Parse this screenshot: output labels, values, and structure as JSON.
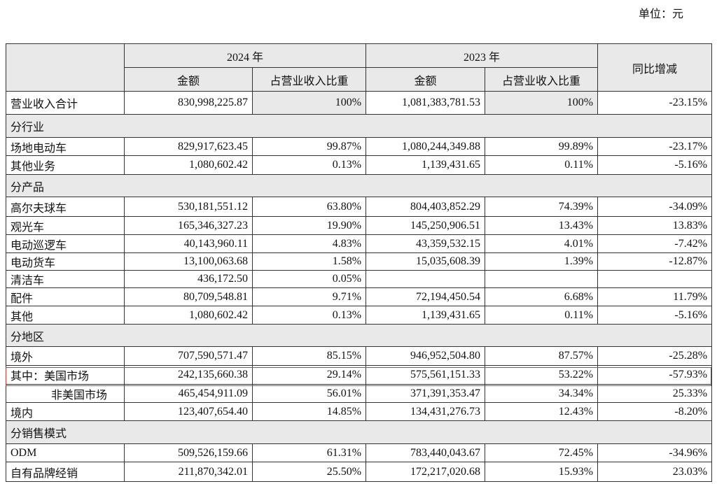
{
  "unit": "单位：元",
  "header": {
    "label_col": "",
    "year_2024": "2024 年",
    "year_2023": "2023 年",
    "yoy": "同比增减",
    "amount": "金额",
    "share": "占营业收入比重"
  },
  "rows": [
    {
      "label": "营业收入合计",
      "cells": [
        "830,998,225.87",
        "100%",
        "1,081,383,781.53",
        "100%",
        "-23.15%"
      ]
    },
    {
      "section": "分行业"
    },
    {
      "label": "场地电动车",
      "cells": [
        "829,917,623.45",
        "99.87%",
        "1,080,244,349.88",
        "99.89%",
        "-23.17%"
      ]
    },
    {
      "label": "其他业务",
      "cells": [
        "1,080,602.42",
        "0.13%",
        "1,139,431.65",
        "0.11%",
        "-5.16%"
      ]
    },
    {
      "section": "分产品"
    },
    {
      "label": "高尔夫球车",
      "cells": [
        "530,181,551.12",
        "63.80%",
        "804,403,852.29",
        "74.39%",
        "-34.09%"
      ]
    },
    {
      "label": "观光车",
      "cells": [
        "165,346,327.23",
        "19.90%",
        "145,250,906.51",
        "13.43%",
        "13.83%"
      ]
    },
    {
      "label": "电动巡逻车",
      "cells": [
        "40,143,960.11",
        "4.83%",
        "43,359,532.15",
        "4.01%",
        "-7.42%"
      ]
    },
    {
      "label": "电动货车",
      "cells": [
        "13,100,063.68",
        "1.58%",
        "15,035,608.39",
        "1.39%",
        "-12.87%"
      ]
    },
    {
      "label": "清洁车",
      "cells": [
        "436,172.50",
        "0.05%"
      ]
    },
    {
      "label": "配件",
      "cells": [
        "80,709,548.81",
        "9.71%",
        "72,194,450.54",
        "6.68%",
        "11.79%"
      ]
    },
    {
      "label": "其他",
      "cells": [
        "1,080,602.42",
        "0.13%",
        "1,139,431.65",
        "0.11%",
        "-5.16%"
      ]
    },
    {
      "section": "分地区"
    },
    {
      "label": "境外",
      "cells": [
        "707,590,571.47",
        "85.15%",
        "946,952,504.80",
        "87.57%",
        "-25.28%"
      ]
    },
    {
      "label": "其中：美国市场",
      "cells": [
        "242,135,660.38",
        "29.14%",
        "575,561,151.33",
        "53.22%",
        "-57.93%"
      ]
    },
    {
      "label": "非美国市场",
      "cells": [
        "465,454,911.09",
        "56.01%",
        "371,391,353.47",
        "34.34%",
        "25.33%"
      ]
    },
    {
      "label": "境内",
      "cells": [
        "123,407,654.40",
        "14.85%",
        "134,431,276.73",
        "12.43%",
        "-8.20%"
      ]
    },
    {
      "section": "分销售模式"
    },
    {
      "label": "ODM",
      "cells": [
        "509,526,159.66",
        "61.31%",
        "783,440,043.67",
        "72.45%",
        "-34.96%"
      ]
    },
    {
      "label": "自有品牌经销",
      "cells": [
        "211,870,342.01",
        "25.50%",
        "172,217,020.68",
        "15.93%",
        "23.03%"
      ]
    }
  ]
}
